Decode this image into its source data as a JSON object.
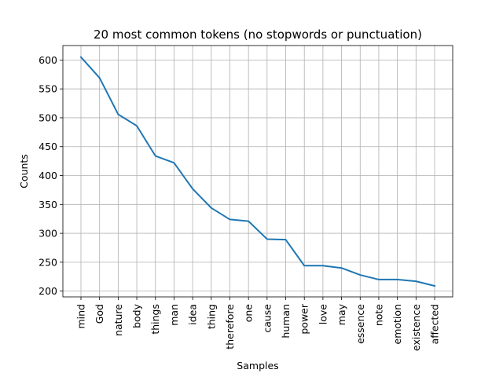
{
  "chart_data": {
    "type": "line",
    "title": "20 most common tokens (no stopwords or punctuation)",
    "xlabel": "Samples",
    "ylabel": "Counts",
    "categories": [
      "mind",
      "God",
      "nature",
      "body",
      "things",
      "man",
      "idea",
      "thing",
      "therefore",
      "one",
      "cause",
      "human",
      "power",
      "love",
      "may",
      "essence",
      "note",
      "emotion",
      "existence",
      "affected"
    ],
    "values": [
      605,
      569,
      506,
      486,
      434,
      422,
      377,
      344,
      324,
      321,
      290,
      289,
      244,
      244,
      240,
      228,
      220,
      220,
      217,
      209
    ],
    "yticks": [
      200,
      250,
      300,
      350,
      400,
      450,
      500,
      550,
      600
    ],
    "ylim": [
      190,
      625
    ],
    "grid": true,
    "series_color": "#1f77b4"
  }
}
